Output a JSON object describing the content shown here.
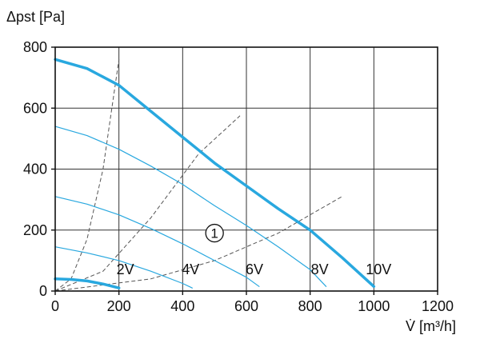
{
  "chart_data": {
    "type": "line",
    "xlabel": "V̇ [m³/h]",
    "ylabel": "Δpst [Pa]",
    "xlim": [
      0,
      1200
    ],
    "ylim": [
      0,
      800
    ],
    "x_ticks": [
      0,
      200,
      400,
      600,
      800,
      1000,
      1200
    ],
    "y_ticks": [
      0,
      200,
      400,
      600,
      800
    ],
    "grid": true,
    "series": [
      {
        "name": "10V",
        "style": "thick",
        "color": "#29a8df",
        "points": [
          [
            0,
            760
          ],
          [
            100,
            730
          ],
          [
            200,
            675
          ],
          [
            300,
            590
          ],
          [
            400,
            505
          ],
          [
            500,
            420
          ],
          [
            600,
            345
          ],
          [
            700,
            270
          ],
          [
            800,
            200
          ],
          [
            900,
            110
          ],
          [
            1000,
            15
          ]
        ]
      },
      {
        "name": "8V",
        "style": "thin",
        "color": "#29a8df",
        "points": [
          [
            0,
            540
          ],
          [
            100,
            510
          ],
          [
            200,
            465
          ],
          [
            300,
            410
          ],
          [
            400,
            350
          ],
          [
            500,
            280
          ],
          [
            600,
            215
          ],
          [
            700,
            145
          ],
          [
            800,
            70
          ],
          [
            850,
            15
          ]
        ]
      },
      {
        "name": "6V",
        "style": "thin",
        "color": "#29a8df",
        "points": [
          [
            0,
            310
          ],
          [
            100,
            285
          ],
          [
            200,
            250
          ],
          [
            300,
            205
          ],
          [
            400,
            155
          ],
          [
            500,
            100
          ],
          [
            600,
            45
          ],
          [
            640,
            15
          ]
        ]
      },
      {
        "name": "4V",
        "style": "thin",
        "color": "#29a8df",
        "points": [
          [
            0,
            145
          ],
          [
            100,
            125
          ],
          [
            200,
            100
          ],
          [
            300,
            65
          ],
          [
            400,
            25
          ],
          [
            430,
            10
          ]
        ]
      },
      {
        "name": "2V",
        "style": "thick",
        "color": "#29a8df",
        "points": [
          [
            0,
            40
          ],
          [
            50,
            38
          ],
          [
            100,
            33
          ],
          [
            150,
            23
          ],
          [
            200,
            10
          ]
        ]
      }
    ],
    "system_curves": [
      {
        "color": "#555555",
        "points": [
          [
            0,
            0
          ],
          [
            50,
            40
          ],
          [
            100,
            170
          ],
          [
            150,
            400
          ],
          [
            175,
            580
          ],
          [
            200,
            760
          ]
        ]
      },
      {
        "color": "#555555",
        "points": [
          [
            0,
            0
          ],
          [
            150,
            65
          ],
          [
            300,
            240
          ],
          [
            450,
            450
          ],
          [
            580,
            575
          ]
        ]
      },
      {
        "color": "#555555",
        "points": [
          [
            0,
            0
          ],
          [
            300,
            40
          ],
          [
            500,
            100
          ],
          [
            700,
            190
          ],
          [
            900,
            310
          ]
        ]
      }
    ],
    "curve_labels": [
      {
        "text": "2V",
        "x": 220,
        "y": 55
      },
      {
        "text": "4V",
        "x": 425,
        "y": 55
      },
      {
        "text": "6V",
        "x": 625,
        "y": 55
      },
      {
        "text": "8V",
        "x": 830,
        "y": 55
      },
      {
        "text": "10V",
        "x": 1015,
        "y": 55
      }
    ],
    "annotation": {
      "text": "1",
      "x": 500,
      "y": 190
    }
  }
}
